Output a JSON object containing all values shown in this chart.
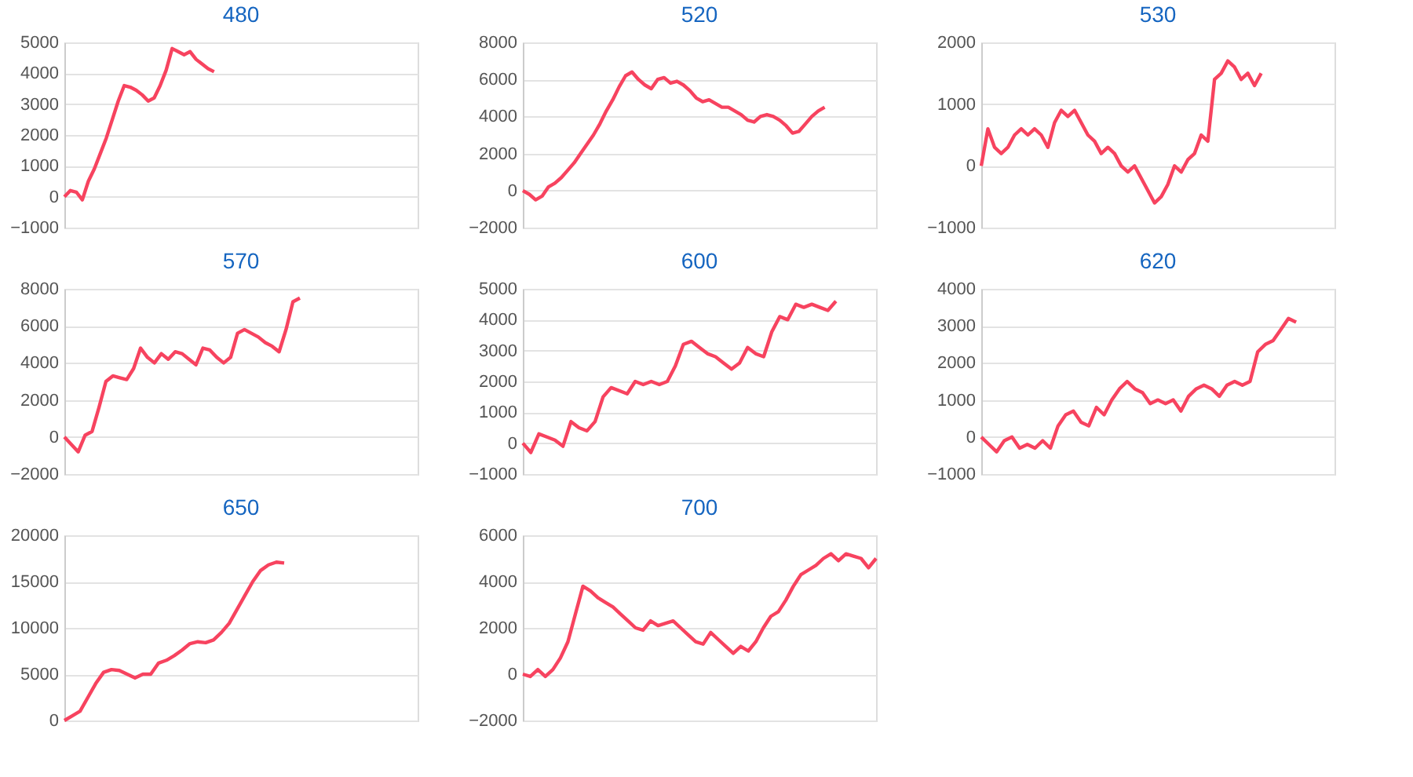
{
  "chart_data": [
    {
      "type": "line",
      "title": "480",
      "categories": [
        null,
        null,
        null,
        null,
        null,
        null,
        null,
        null,
        null,
        null,
        null,
        null,
        null,
        null,
        null,
        null,
        null,
        null,
        null,
        null,
        null,
        null,
        null,
        null,
        null,
        null,
        null,
        null,
        null,
        null,
        null,
        null,
        null,
        null,
        null,
        null,
        null,
        null,
        null,
        null,
        null,
        null,
        null,
        null,
        null,
        null,
        null,
        null,
        null,
        null,
        null,
        null,
        null,
        null,
        null,
        null,
        null,
        null,
        null,
        null
      ],
      "series": [
        {
          "color": "#f7435f",
          "values": [
            0,
            200,
            150,
            -100,
            500,
            900,
            1400,
            1900,
            2500,
            3100,
            3600,
            3550,
            3450,
            3300,
            3100,
            3200,
            3600,
            4100,
            4800,
            4700,
            4600,
            4700,
            4450,
            4300,
            4150,
            4050,
            null,
            null,
            null,
            null,
            null,
            null,
            null,
            null,
            null,
            null,
            null,
            null,
            null,
            null,
            null,
            null,
            null,
            null,
            null,
            null,
            null,
            null,
            null,
            null,
            null,
            null,
            null,
            null,
            null,
            null,
            null,
            null,
            null,
            null
          ]
        }
      ],
      "ylim": [
        -1000,
        5000
      ],
      "yticks": [
        -1000,
        0,
        1000,
        2000,
        3000,
        4000,
        5000
      ],
      "grid": "y",
      "tick_labels": "y"
    },
    {
      "type": "line",
      "title": "520",
      "categories": [
        null,
        null,
        null,
        null,
        null,
        null,
        null,
        null,
        null,
        null,
        null,
        null,
        null,
        null,
        null,
        null,
        null,
        null,
        null,
        null,
        null,
        null,
        null,
        null,
        null,
        null,
        null,
        null,
        null,
        null,
        null,
        null,
        null,
        null,
        null,
        null,
        null,
        null,
        null,
        null,
        null,
        null,
        null,
        null,
        null,
        null,
        null,
        null,
        null,
        null,
        null,
        null,
        null,
        null,
        null,
        null
      ],
      "series": [
        {
          "color": "#f7435f",
          "values": [
            0,
            -200,
            -500,
            -300,
            200,
            400,
            700,
            1100,
            1500,
            2000,
            2500,
            3000,
            3600,
            4300,
            4900,
            5600,
            6200,
            6400,
            6000,
            5700,
            5500,
            6000,
            6100,
            5800,
            5900,
            5700,
            5400,
            5000,
            4800,
            4900,
            4700,
            4500,
            4500,
            4300,
            4100,
            3800,
            3700,
            4000,
            4100,
            4000,
            3800,
            3500,
            3100,
            3200,
            3600,
            4000,
            4300,
            4500,
            null,
            null,
            null,
            null,
            null,
            null,
            null,
            null
          ]
        }
      ],
      "ylim": [
        -2000,
        8000
      ],
      "yticks": [
        -2000,
        0,
        2000,
        4000,
        6000,
        8000
      ],
      "grid": "y",
      "tick_labels": "y"
    },
    {
      "type": "line",
      "title": "530",
      "categories": [
        null,
        null,
        null,
        null,
        null,
        null,
        null,
        null,
        null,
        null,
        null,
        null,
        null,
        null,
        null,
        null,
        null,
        null,
        null,
        null,
        null,
        null,
        null,
        null,
        null,
        null,
        null,
        null,
        null,
        null,
        null,
        null,
        null,
        null,
        null,
        null,
        null,
        null,
        null,
        null,
        null,
        null,
        null,
        null,
        null,
        null,
        null,
        null,
        null,
        null,
        null,
        null,
        null,
        null
      ],
      "series": [
        {
          "color": "#f7435f",
          "values": [
            0,
            600,
            300,
            200,
            300,
            500,
            600,
            500,
            600,
            500,
            300,
            700,
            900,
            800,
            900,
            700,
            500,
            400,
            200,
            300,
            200,
            0,
            -100,
            0,
            -200,
            -400,
            -600,
            -500,
            -300,
            0,
            -100,
            100,
            200,
            500,
            400,
            1400,
            1500,
            1700,
            1600,
            1400,
            1500,
            1300,
            1500,
            null,
            null,
            null,
            null,
            null,
            null,
            null,
            null,
            null,
            null,
            null
          ]
        }
      ],
      "ylim": [
        -1000,
        2000
      ],
      "yticks": [
        -1000,
        0,
        1000,
        2000
      ],
      "grid": "y",
      "tick_labels": "y"
    },
    {
      "type": "line",
      "title": "570",
      "categories": [
        null,
        null,
        null,
        null,
        null,
        null,
        null,
        null,
        null,
        null,
        null,
        null,
        null,
        null,
        null,
        null,
        null,
        null,
        null,
        null,
        null,
        null,
        null,
        null,
        null,
        null,
        null,
        null,
        null,
        null,
        null,
        null,
        null,
        null,
        null,
        null,
        null,
        null,
        null,
        null,
        null,
        null,
        null,
        null,
        null,
        null,
        null,
        null,
        null,
        null,
        null,
        null
      ],
      "series": [
        {
          "color": "#f7435f",
          "values": [
            0,
            -400,
            -800,
            100,
            300,
            1600,
            3000,
            3300,
            3200,
            3100,
            3700,
            4800,
            4300,
            4000,
            4500,
            4200,
            4600,
            4500,
            4200,
            3900,
            4800,
            4700,
            4300,
            4000,
            4300,
            5600,
            5800,
            5600,
            5400,
            5100,
            4900,
            4600,
            5800,
            7300,
            7500,
            null,
            null,
            null,
            null,
            null,
            null,
            null,
            null,
            null,
            null,
            null,
            null,
            null,
            null,
            null,
            null,
            null
          ]
        }
      ],
      "ylim": [
        -2000,
        8000
      ],
      "yticks": [
        -2000,
        0,
        2000,
        4000,
        6000,
        8000
      ],
      "grid": "y",
      "tick_labels": "y"
    },
    {
      "type": "line",
      "title": "600",
      "categories": [
        null,
        null,
        null,
        null,
        null,
        null,
        null,
        null,
        null,
        null,
        null,
        null,
        null,
        null,
        null,
        null,
        null,
        null,
        null,
        null,
        null,
        null,
        null,
        null,
        null,
        null,
        null,
        null,
        null,
        null,
        null,
        null,
        null,
        null,
        null,
        null,
        null,
        null,
        null,
        null,
        null,
        null,
        null,
        null,
        null
      ],
      "series": [
        {
          "color": "#f7435f",
          "values": [
            0,
            -300,
            300,
            200,
            100,
            -100,
            700,
            500,
            400,
            700,
            1500,
            1800,
            1700,
            1600,
            2000,
            1900,
            2000,
            1900,
            2000,
            2500,
            3200,
            3300,
            3100,
            2900,
            2800,
            2600,
            2400,
            2600,
            3100,
            2900,
            2800,
            3600,
            4100,
            4000,
            4500,
            4400,
            4500,
            4400,
            4300,
            4600,
            null,
            null,
            null,
            null,
            null
          ]
        }
      ],
      "ylim": [
        -1000,
        5000
      ],
      "yticks": [
        -1000,
        0,
        1000,
        2000,
        3000,
        4000,
        5000
      ],
      "grid": "y",
      "tick_labels": "y"
    },
    {
      "type": "line",
      "title": "620",
      "categories": [
        null,
        null,
        null,
        null,
        null,
        null,
        null,
        null,
        null,
        null,
        null,
        null,
        null,
        null,
        null,
        null,
        null,
        null,
        null,
        null,
        null,
        null,
        null,
        null,
        null,
        null,
        null,
        null,
        null,
        null,
        null,
        null,
        null,
        null,
        null,
        null,
        null,
        null,
        null,
        null,
        null,
        null,
        null,
        null,
        null,
        null,
        null
      ],
      "series": [
        {
          "color": "#f7435f",
          "values": [
            0,
            -200,
            -400,
            -100,
            0,
            -300,
            -200,
            -300,
            -100,
            -300,
            300,
            600,
            700,
            400,
            300,
            800,
            600,
            1000,
            1300,
            1500,
            1300,
            1200,
            900,
            1000,
            900,
            1000,
            700,
            1100,
            1300,
            1400,
            1300,
            1100,
            1400,
            1500,
            1400,
            1500,
            2300,
            2500,
            2600,
            2900,
            3200,
            3100,
            null,
            null,
            null,
            null,
            null
          ]
        }
      ],
      "ylim": [
        -1000,
        4000
      ],
      "yticks": [
        -1000,
        0,
        1000,
        2000,
        3000,
        4000
      ],
      "grid": "y",
      "tick_labels": "y"
    },
    {
      "type": "line",
      "title": "650",
      "categories": [
        null,
        null,
        null,
        null,
        null,
        null,
        null,
        null,
        null,
        null,
        null,
        null,
        null,
        null,
        null,
        null,
        null,
        null,
        null,
        null,
        null,
        null,
        null,
        null,
        null,
        null,
        null,
        null,
        null,
        null,
        null,
        null,
        null,
        null,
        null,
        null,
        null,
        null,
        null,
        null,
        null,
        null,
        null,
        null,
        null,
        null
      ],
      "series": [
        {
          "color": "#f7435f",
          "values": [
            0,
            500,
            1000,
            2500,
            4000,
            5200,
            5500,
            5400,
            5000,
            4600,
            5000,
            5000,
            6200,
            6500,
            7000,
            7600,
            8300,
            8500,
            8400,
            8700,
            9500,
            10500,
            12000,
            13500,
            15000,
            16200,
            16800,
            17100,
            17000,
            null,
            null,
            null,
            null,
            null,
            null,
            null,
            null,
            null,
            null,
            null,
            null,
            null,
            null,
            null,
            null,
            null
          ]
        }
      ],
      "ylim": [
        0,
        20000
      ],
      "yticks": [
        0,
        5000,
        10000,
        15000,
        20000
      ],
      "grid": "y",
      "tick_labels": "y"
    },
    {
      "type": "line",
      "title": "700",
      "categories": [
        null,
        null,
        null,
        null,
        null,
        null,
        null,
        null,
        null,
        null,
        null,
        null,
        null,
        null,
        null,
        null,
        null,
        null,
        null,
        null,
        null,
        null,
        null,
        null,
        null,
        null,
        null,
        null,
        null,
        null,
        null,
        null,
        null,
        null,
        null,
        null,
        null,
        null,
        null,
        null,
        null,
        null,
        null,
        null,
        null,
        null,
        null,
        null
      ],
      "series": [
        {
          "color": "#f7435f",
          "values": [
            0,
            -100,
            200,
            -100,
            200,
            700,
            1400,
            2600,
            3800,
            3600,
            3300,
            3100,
            2900,
            2600,
            2300,
            2000,
            1900,
            2300,
            2100,
            2200,
            2300,
            2000,
            1700,
            1400,
            1300,
            1800,
            1500,
            1200,
            900,
            1200,
            1000,
            1400,
            2000,
            2500,
            2700,
            3200,
            3800,
            4300,
            4500,
            4700,
            5000,
            5200,
            4900,
            5200,
            5100,
            5000,
            4600,
            5000
          ]
        }
      ],
      "ylim": [
        -2000,
        6000
      ],
      "yticks": [
        -2000,
        0,
        2000,
        4000,
        6000
      ],
      "grid": "y",
      "tick_labels": "y"
    }
  ]
}
